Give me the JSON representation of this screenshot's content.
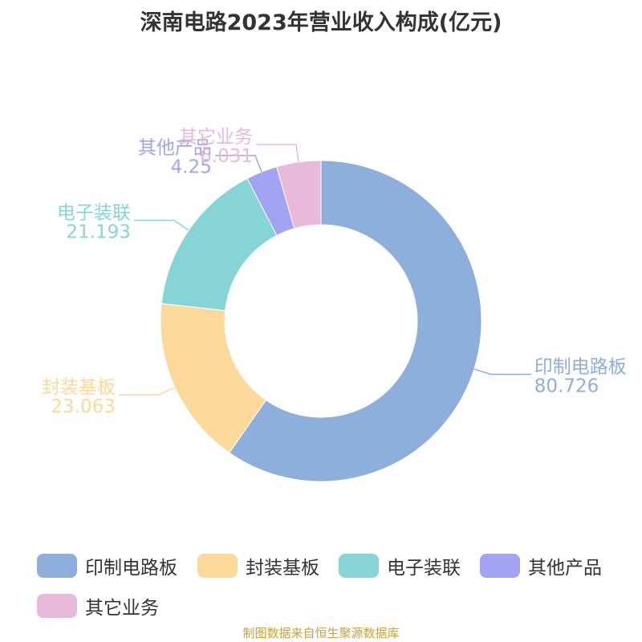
{
  "chart_data": {
    "type": "pie",
    "title": "深南电路2023年营业收入构成(亿元)",
    "categories": [
      "印制电路板",
      "封装基板",
      "电子装联",
      "其他产品",
      "其它业务"
    ],
    "values": [
      80.726,
      23.063,
      21.193,
      4.25,
      6.031
    ],
    "value_labels": [
      "80.726",
      "23.063",
      "21.193",
      "4.25",
      "6.031"
    ],
    "colors": [
      "#8eaedb",
      "#fdd89b",
      "#87d4d7",
      "#a2a3f3",
      "#e8b9d9"
    ],
    "donut": true,
    "legend_position": "bottom"
  },
  "source": "制图数据来自恒生聚源数据库"
}
